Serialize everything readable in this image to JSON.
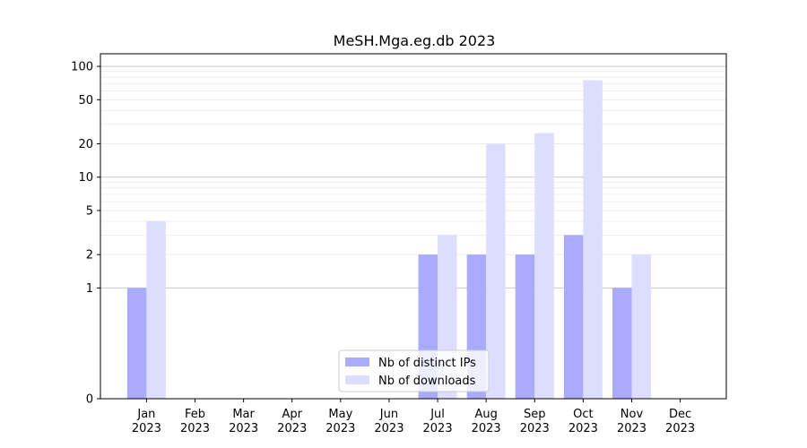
{
  "chart_data": {
    "type": "bar",
    "title": "MeSH.Mga.eg.db 2023",
    "xlabel": "",
    "ylabel": "",
    "yscale": "symlog",
    "ylim": [
      0,
      130
    ],
    "yticks": [
      0,
      1,
      2,
      5,
      10,
      20,
      50,
      100
    ],
    "categories": [
      [
        "Jan",
        "2023"
      ],
      [
        "Feb",
        "2023"
      ],
      [
        "Mar",
        "2023"
      ],
      [
        "Apr",
        "2023"
      ],
      [
        "May",
        "2023"
      ],
      [
        "Jun",
        "2023"
      ],
      [
        "Jul",
        "2023"
      ],
      [
        "Aug",
        "2023"
      ],
      [
        "Sep",
        "2023"
      ],
      [
        "Oct",
        "2023"
      ],
      [
        "Nov",
        "2023"
      ],
      [
        "Dec",
        "2023"
      ]
    ],
    "series": [
      {
        "name": "Nb of distinct IPs",
        "color": "#aaaaff",
        "values": [
          1,
          0,
          0,
          0,
          0,
          0,
          2,
          2,
          2,
          3,
          1,
          0
        ]
      },
      {
        "name": "Nb of downloads",
        "color": "#ddddff",
        "values": [
          4,
          0,
          0,
          0,
          0,
          0,
          3,
          20,
          25,
          75,
          2,
          0
        ]
      }
    ],
    "grid": true,
    "legend_position": "lower-center"
  }
}
